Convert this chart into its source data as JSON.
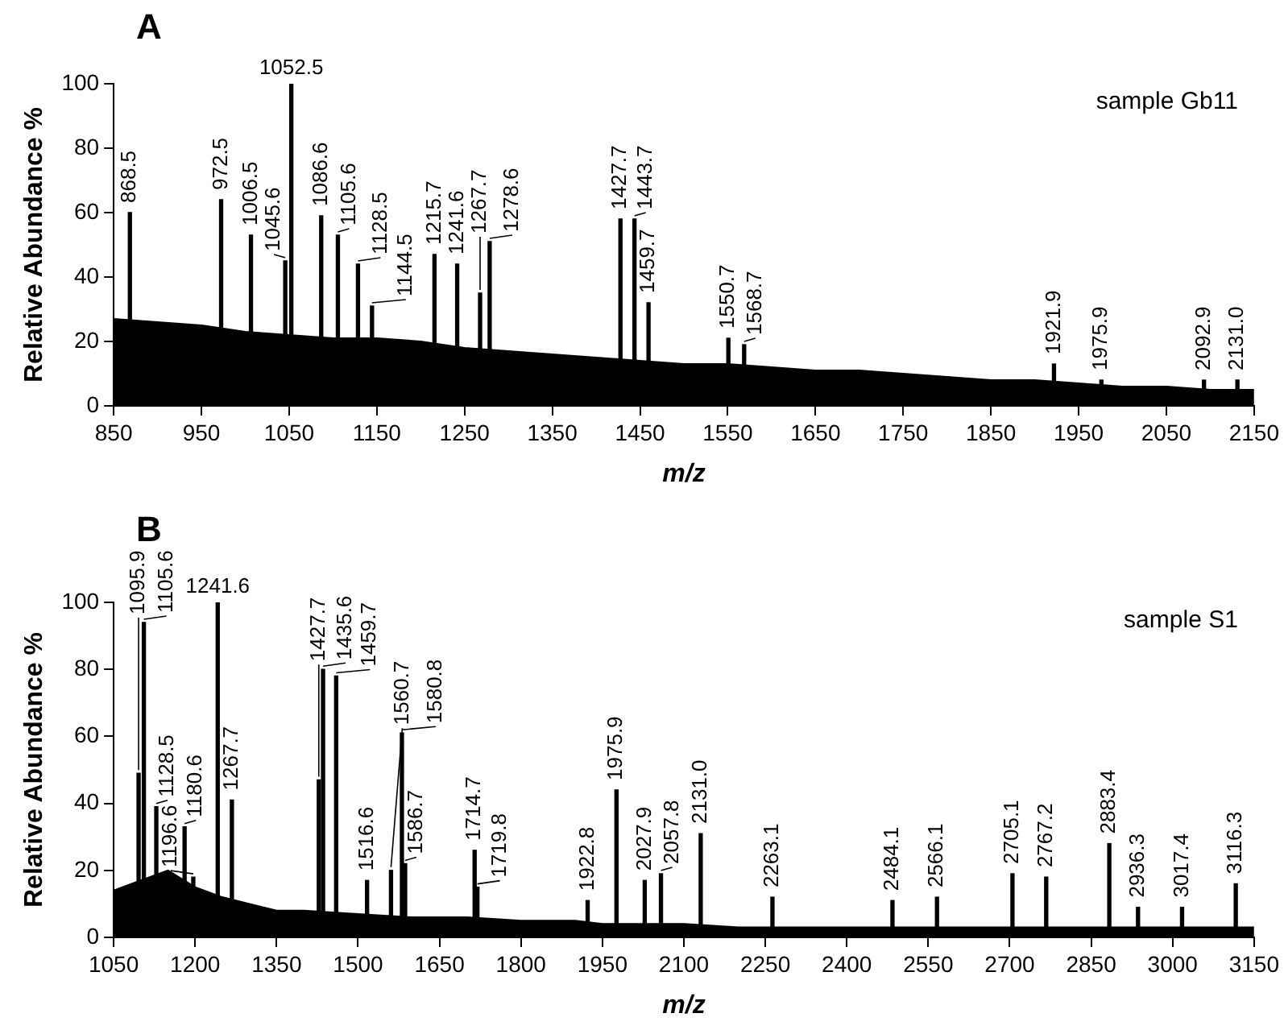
{
  "chart_data": [
    {
      "type": "bar",
      "title": "A",
      "xlabel": "m/z",
      "ylabel": "Relative Abundance %",
      "xlim": [
        850,
        2150
      ],
      "xticks": [
        850,
        950,
        1050,
        1150,
        1250,
        1350,
        1450,
        1550,
        1650,
        1750,
        1850,
        1950,
        2050,
        2150
      ],
      "ylim": [
        0,
        100
      ],
      "yticks": [
        0,
        20,
        40,
        60,
        80,
        100
      ],
      "series": [
        {
          "type": "area",
          "color": "#000000",
          "x": [
            850,
            900,
            950,
            1000,
            1050,
            1100,
            1150,
            1200,
            1250,
            1300,
            1350,
            1400,
            1450,
            1500,
            1550,
            1600,
            1650,
            1700,
            1750,
            1800,
            1850,
            1900,
            1950,
            2000,
            2050,
            2100,
            2150
          ],
          "values": [
            27,
            26,
            25,
            23,
            22,
            21,
            21,
            20,
            18,
            17,
            16,
            15,
            14,
            13,
            13,
            12,
            11,
            11,
            10,
            9,
            8,
            8,
            7,
            6,
            6,
            5,
            5
          ]
        },
        {
          "type": "bar",
          "color": "#000000",
          "x": [
            868.5,
            972.5,
            1006.5,
            1045.6,
            1052.5,
            1086.6,
            1105.6,
            1128.5,
            1144.5,
            1215.7,
            1241.6,
            1267.7,
            1278.6,
            1427.7,
            1443.7,
            1459.7,
            1550.7,
            1568.7,
            1921.9,
            1975.9,
            2092.9,
            2131.0
          ],
          "values": [
            60,
            64,
            53,
            45,
            100,
            59,
            53,
            44,
            31,
            47,
            44,
            35,
            51,
            58,
            58,
            32,
            21,
            19,
            13,
            8,
            8,
            8
          ]
        }
      ],
      "annotations": [
        "sample Gb11",
        {
          "text": "868.5",
          "x": 868.5,
          "y": 60
        },
        {
          "text": "972.5",
          "x": 972.5,
          "y": 64
        },
        {
          "text": "1006.5",
          "x": 1006.5,
          "y": 53
        },
        {
          "text": "1045.6",
          "x": 1045.6,
          "y": 45
        },
        {
          "text": "1052.5",
          "x": 1052.5,
          "y": 100
        },
        {
          "text": "1086.6",
          "x": 1086.6,
          "y": 59
        },
        {
          "text": "1105.6",
          "x": 1105.6,
          "y": 53
        },
        {
          "text": "1128.5",
          "x": 1128.5,
          "y": 44
        },
        {
          "text": "1144.5",
          "x": 1144.5,
          "y": 31
        },
        {
          "text": "1215.7",
          "x": 1215.7,
          "y": 47
        },
        {
          "text": "1241.6",
          "x": 1241.6,
          "y": 44
        },
        {
          "text": "1267.7",
          "x": 1267.7,
          "y": 35
        },
        {
          "text": "1278.6",
          "x": 1278.6,
          "y": 51
        },
        {
          "text": "1427.7",
          "x": 1427.7,
          "y": 58
        },
        {
          "text": "1443.7",
          "x": 1443.7,
          "y": 58
        },
        {
          "text": "1459.7",
          "x": 1459.7,
          "y": 32
        },
        {
          "text": "1550.7",
          "x": 1550.7,
          "y": 21
        },
        {
          "text": "1568.7",
          "x": 1568.7,
          "y": 19
        },
        {
          "text": "1921.9",
          "x": 1921.9,
          "y": 13
        },
        {
          "text": "1975.9",
          "x": 1975.9,
          "y": 8
        },
        {
          "text": "2092.9",
          "x": 2092.9,
          "y": 8
        },
        {
          "text": "2131.0",
          "x": 2131.0,
          "y": 8
        }
      ]
    },
    {
      "type": "bar",
      "title": "B",
      "xlabel": "m/z",
      "ylabel": "Relative Abundance %",
      "xlim": [
        1050,
        3150
      ],
      "xticks": [
        1050,
        1200,
        1350,
        1500,
        1650,
        1800,
        1950,
        2100,
        2250,
        2400,
        2550,
        2700,
        2850,
        3000,
        3150
      ],
      "ylim": [
        0,
        100
      ],
      "yticks": [
        0,
        20,
        40,
        60,
        80,
        100
      ],
      "series": [
        {
          "type": "area",
          "color": "#000000",
          "x": [
            1050,
            1100,
            1150,
            1200,
            1250,
            1300,
            1350,
            1400,
            1500,
            1600,
            1650,
            1700,
            1800,
            1900,
            1950,
            2000,
            2100,
            2200,
            2400,
            2600,
            2700,
            2800,
            3000,
            3150
          ],
          "values": [
            14,
            17,
            20,
            15,
            12,
            10,
            8,
            8,
            7,
            6,
            6,
            6,
            5,
            5,
            4,
            4,
            4,
            3,
            3,
            3,
            3,
            3,
            3,
            3
          ]
        },
        {
          "type": "bar",
          "color": "#000000",
          "x": [
            1095.9,
            1105.6,
            1128.5,
            1180.6,
            1196.6,
            1241.6,
            1267.7,
            1427.7,
            1435.6,
            1459.7,
            1516.6,
            1560.7,
            1580.8,
            1586.7,
            1714.7,
            1719.8,
            1922.8,
            1975.9,
            2027.9,
            2057.8,
            2131.0,
            2263.1,
            2484.1,
            2566.1,
            2705.1,
            2767.2,
            2883.4,
            2936.3,
            3017.4,
            3116.3
          ],
          "values": [
            49,
            94,
            39,
            33,
            18,
            100,
            41,
            47,
            80,
            78,
            17,
            20,
            61,
            22,
            26,
            15,
            11,
            44,
            17,
            19,
            31,
            12,
            11,
            12,
            19,
            18,
            28,
            9,
            9,
            16
          ]
        }
      ],
      "annotations": [
        "sample S1",
        {
          "text": "1095.9",
          "x": 1095.9,
          "y": 49
        },
        {
          "text": "1105.6",
          "x": 1105.6,
          "y": 94
        },
        {
          "text": "1128.5",
          "x": 1128.5,
          "y": 39
        },
        {
          "text": "1180.6",
          "x": 1180.6,
          "y": 33
        },
        {
          "text": "1196.6",
          "x": 1196.6,
          "y": 18
        },
        {
          "text": "1241.6",
          "x": 1241.6,
          "y": 100
        },
        {
          "text": "1267.7",
          "x": 1267.7,
          "y": 41
        },
        {
          "text": "1427.7",
          "x": 1427.7,
          "y": 47
        },
        {
          "text": "1435.6",
          "x": 1435.6,
          "y": 80
        },
        {
          "text": "1459.7",
          "x": 1459.7,
          "y": 78
        },
        {
          "text": "1516.6",
          "x": 1516.6,
          "y": 17
        },
        {
          "text": "1560.7",
          "x": 1560.7,
          "y": 20
        },
        {
          "text": "1580.8",
          "x": 1580.8,
          "y": 61
        },
        {
          "text": "1586.7",
          "x": 1586.7,
          "y": 22
        },
        {
          "text": "1714.7",
          "x": 1714.7,
          "y": 26
        },
        {
          "text": "1719.8",
          "x": 1719.8,
          "y": 15
        },
        {
          "text": "1922.8",
          "x": 1922.8,
          "y": 11
        },
        {
          "text": "1975.9",
          "x": 1975.9,
          "y": 44
        },
        {
          "text": "2027.9",
          "x": 2027.9,
          "y": 17
        },
        {
          "text": "2057.8",
          "x": 2057.8,
          "y": 19
        },
        {
          "text": "2131.0",
          "x": 2131.0,
          "y": 31
        },
        {
          "text": "2263.1",
          "x": 2263.1,
          "y": 12
        },
        {
          "text": "2484.1",
          "x": 2484.1,
          "y": 11
        },
        {
          "text": "2566.1",
          "x": 2566.1,
          "y": 12
        },
        {
          "text": "2705.1",
          "x": 2705.1,
          "y": 19
        },
        {
          "text": "2767.2",
          "x": 2767.2,
          "y": 18
        },
        {
          "text": "2883.4",
          "x": 2883.4,
          "y": 28
        },
        {
          "text": "2936.3",
          "x": 2936.3,
          "y": 9
        },
        {
          "text": "3017.4",
          "x": 3017.4,
          "y": 9
        },
        {
          "text": "3116.3",
          "x": 3116.3,
          "y": 16
        }
      ]
    }
  ]
}
